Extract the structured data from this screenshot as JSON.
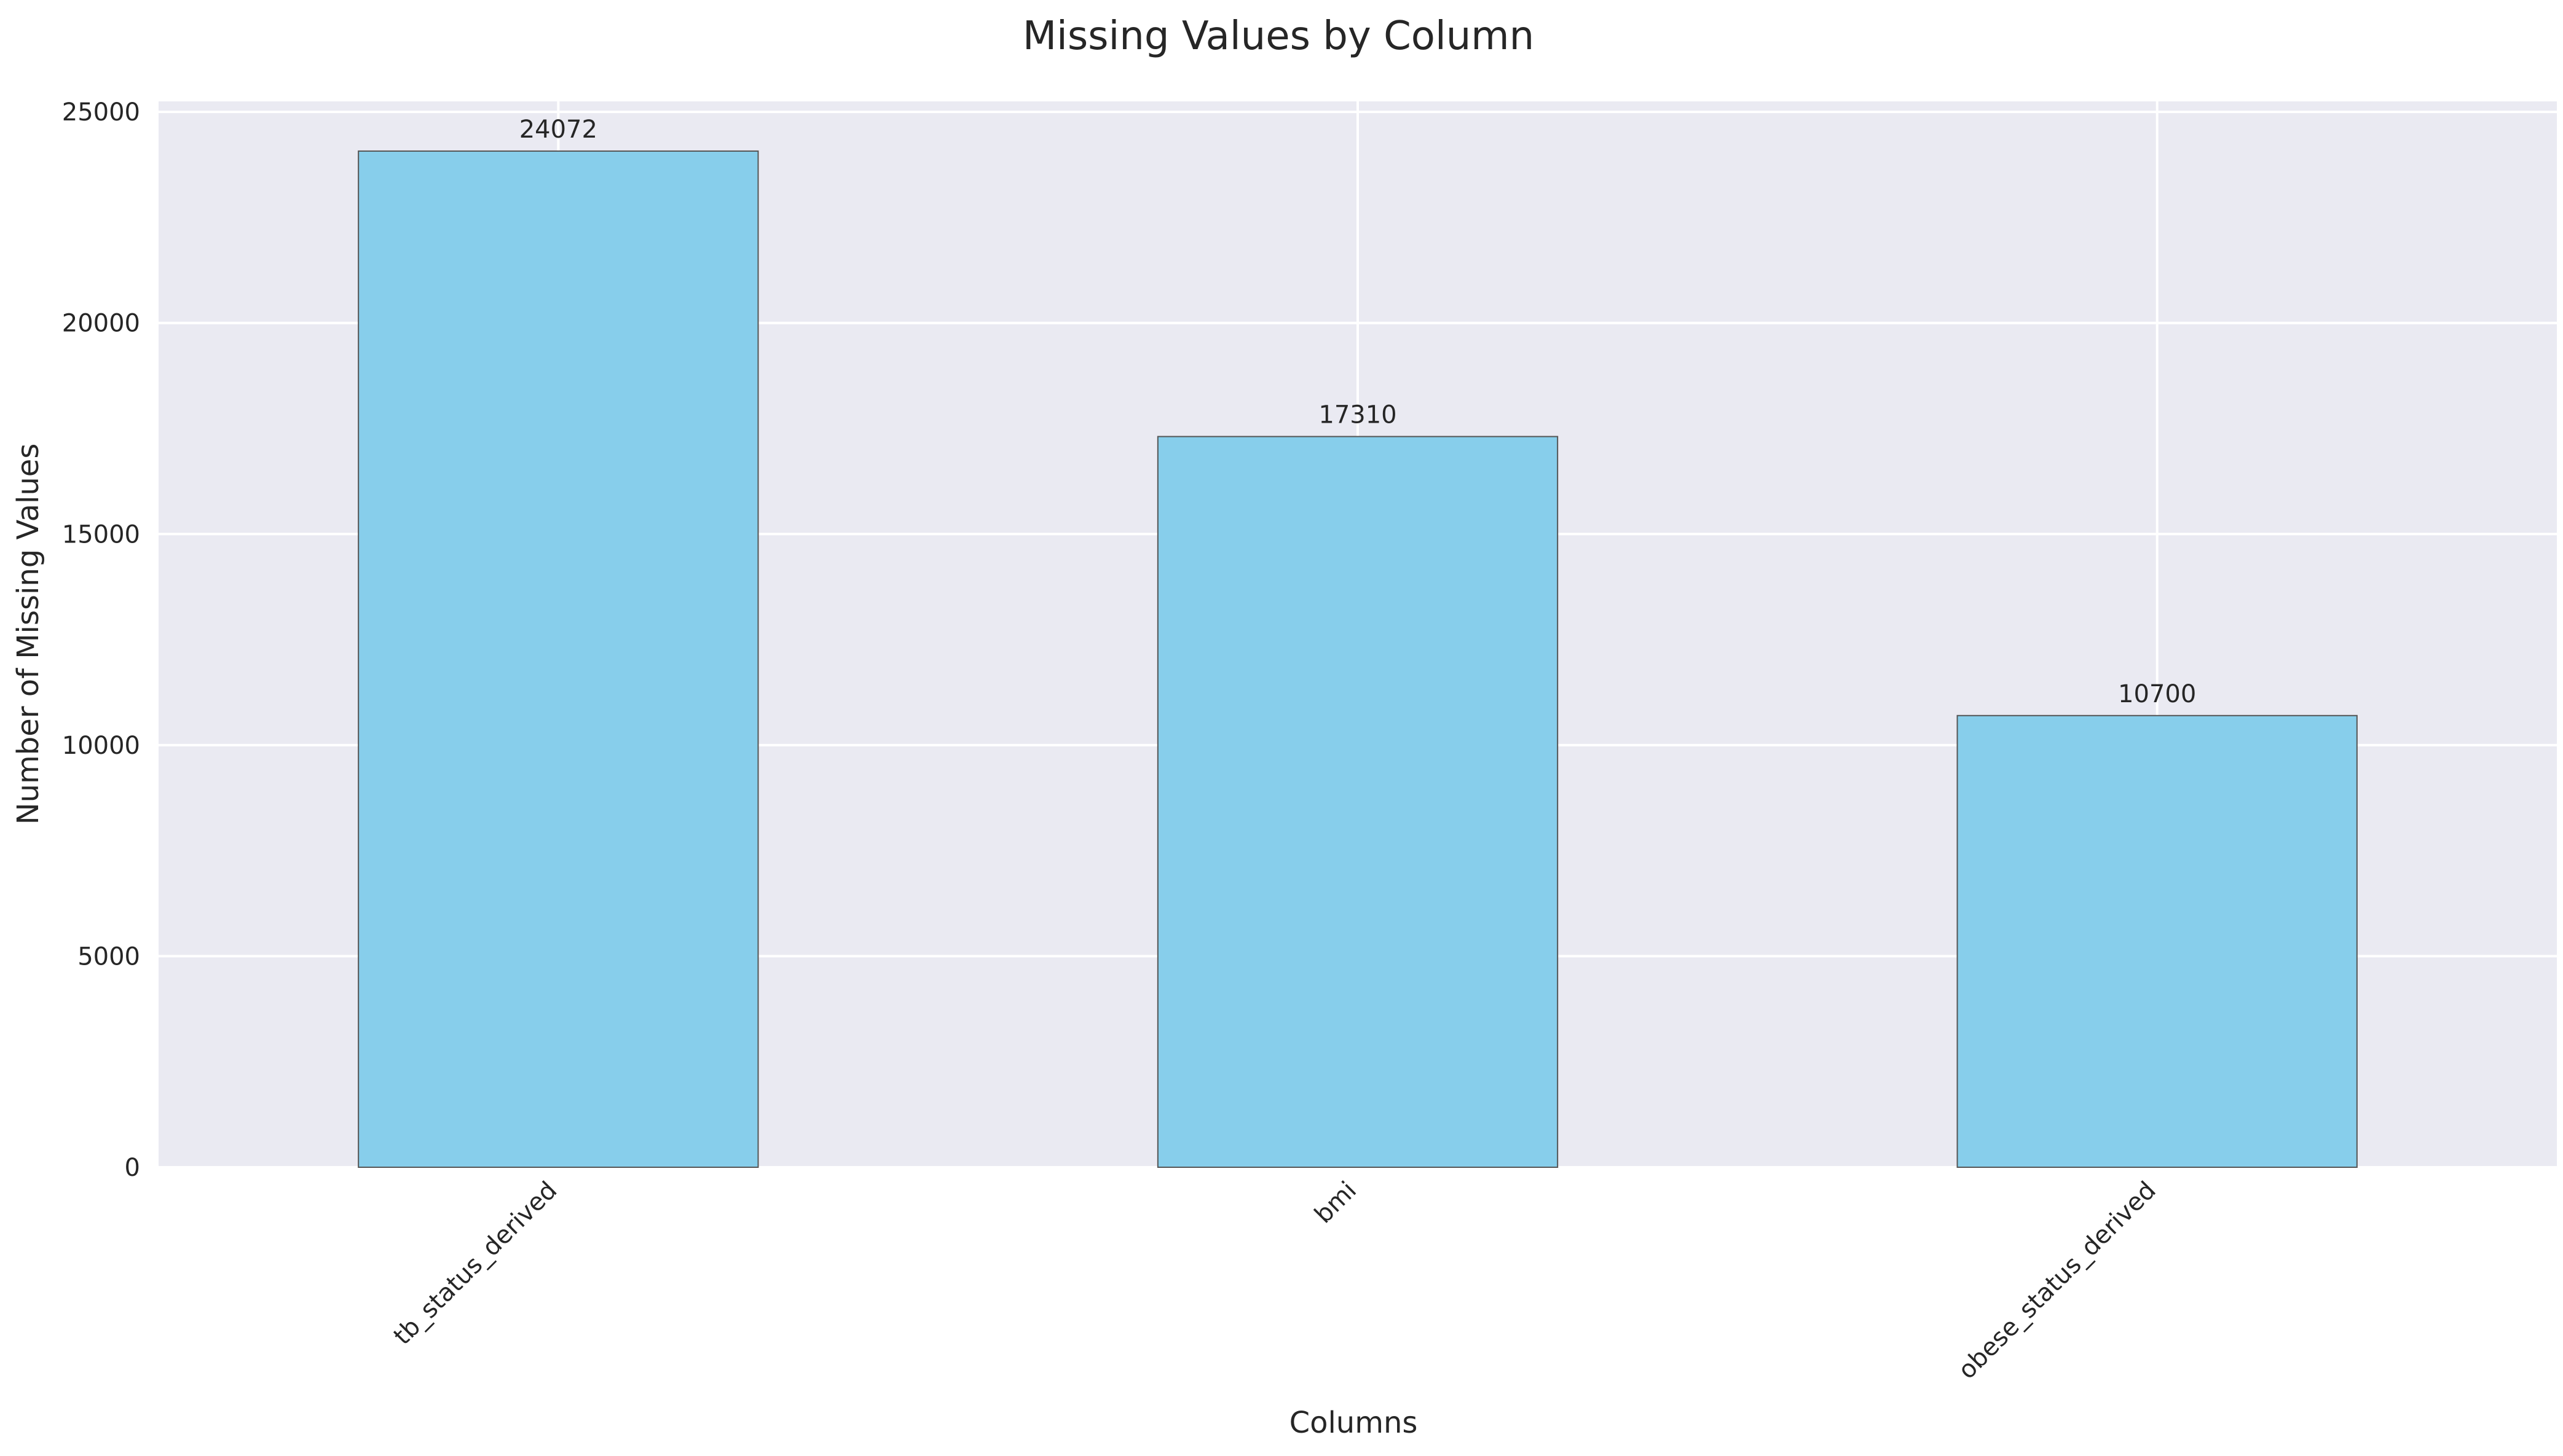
{
  "chart_data": {
    "type": "bar",
    "title": "Missing Values by Column",
    "xlabel": "Columns",
    "ylabel": "Number of Missing Values",
    "categories": [
      "tb_status_derived",
      "bmi",
      "obese_status_derived"
    ],
    "values": [
      24072,
      17310,
      10700
    ],
    "data_labels": [
      "24072",
      "17310",
      "10700"
    ],
    "y_ticks": [
      0,
      5000,
      10000,
      15000,
      20000,
      25000
    ],
    "y_tick_labels": [
      "0",
      "5000",
      "10000",
      "15000",
      "20000",
      "25000"
    ],
    "ylim": [
      0,
      25250
    ],
    "grid": true,
    "colors": {
      "bar_fill": "#87CEEB",
      "bar_edge": "#555555",
      "plot_background": "#EAEAF2",
      "grid": "#FFFFFF",
      "text": "#262626"
    }
  }
}
